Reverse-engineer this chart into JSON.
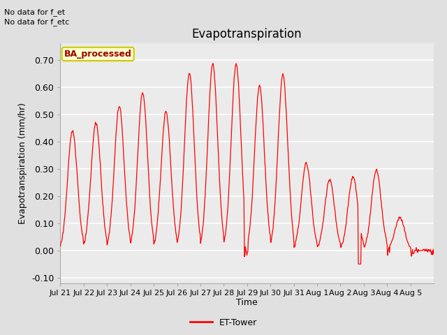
{
  "title": "Evapotranspiration",
  "ylabel": "Evapotranspiration (mm/hr)",
  "xlabel": "Time",
  "ylim": [
    -0.12,
    0.76
  ],
  "bg_color": "#e0e0e0",
  "plot_bg_color": "#ebebeb",
  "line_color": "#ff0000",
  "annotation_text1": "No data for f_et",
  "annotation_text2": "No data for f_etc",
  "legend_label": "BA_processed",
  "legend_label2": "ET-Tower",
  "tick_labels": [
    "Jul 21",
    "Jul 22",
    "Jul 23",
    "Jul 24",
    "Jul 25",
    "Jul 26",
    "Jul 27",
    "Jul 28",
    "Jul 29",
    "Jul 30",
    "Jul 31",
    "Aug 1",
    "Aug 2",
    "Aug 3",
    "Aug 4",
    "Aug 5"
  ],
  "ytick_labels": [
    "-0.10",
    "0.00",
    "0.10",
    "0.20",
    "0.30",
    "0.40",
    "0.50",
    "0.60",
    "0.70"
  ],
  "ytick_vals": [
    -0.1,
    0.0,
    0.1,
    0.2,
    0.3,
    0.4,
    0.5,
    0.6,
    0.7
  ],
  "peaks": [
    0.44,
    0.47,
    0.53,
    0.58,
    0.51,
    0.65,
    0.685,
    0.685,
    0.605,
    0.645,
    0.32,
    0.26,
    0.27,
    0.295,
    0.12,
    0.0
  ]
}
